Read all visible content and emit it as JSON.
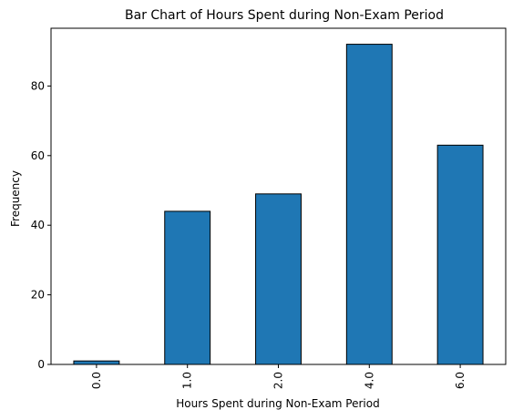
{
  "chart_data": {
    "type": "bar",
    "title": "Bar Chart of Hours Spent during Non-Exam Period",
    "xlabel": "Hours Spent during Non-Exam Period",
    "ylabel": "Frequency",
    "categories": [
      "0.0",
      "1.0",
      "2.0",
      "4.0",
      "6.0"
    ],
    "values": [
      1,
      44,
      49,
      92,
      63
    ],
    "ylim": [
      0,
      96.6
    ],
    "yticks": [
      0,
      20,
      40,
      60,
      80
    ],
    "grid": false,
    "bar_color": "#1f77b4",
    "edge_color": "#000000"
  }
}
